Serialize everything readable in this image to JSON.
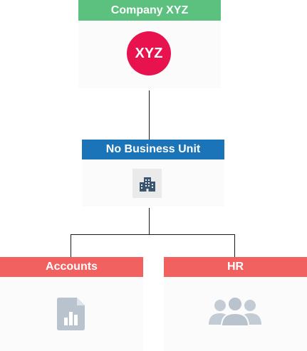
{
  "org": {
    "company": {
      "title": "Company XYZ",
      "avatar_text": "XYZ",
      "color": "#5cc17e",
      "avatar_color": "#e8124f",
      "icon": "company-avatar"
    },
    "business_unit": {
      "title": "No Business Unit",
      "color": "#1b74b8",
      "icon": "building-icon"
    },
    "departments": [
      {
        "title": "Accounts",
        "color": "#f06160",
        "icon": "report-document-icon"
      },
      {
        "title": "HR",
        "color": "#f06160",
        "icon": "people-group-icon"
      }
    ]
  }
}
